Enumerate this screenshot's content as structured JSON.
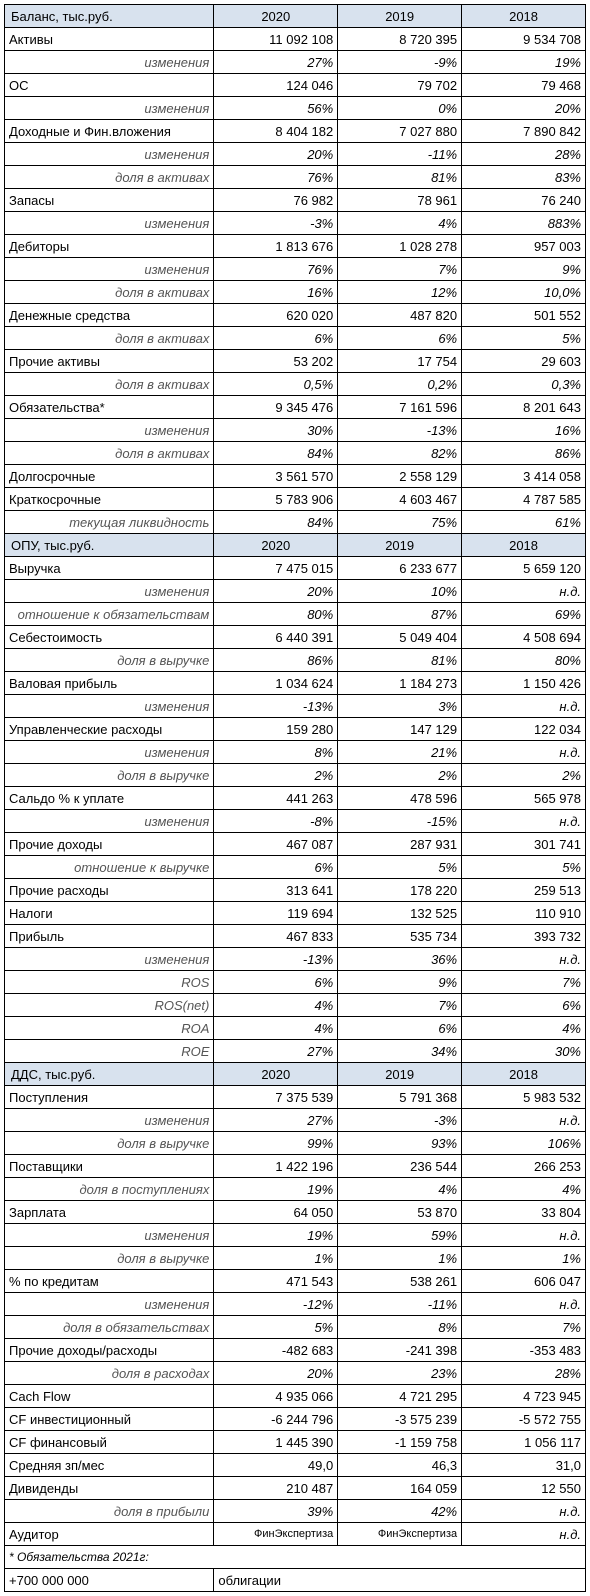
{
  "years": [
    "2020",
    "2019",
    "2018"
  ],
  "sections": {
    "balance": {
      "title": "Баланс, тыс.руб."
    },
    "opu": {
      "title": "ОПУ, тыс.руб."
    },
    "dds": {
      "title": "ДДС, тыс.руб."
    }
  },
  "labels": {
    "izmen": "изменения",
    "dolya_aktiv": "доля в активах",
    "dolya_vyruchke": "доля в выручке",
    "dolya_postup": "доля в поступлениях",
    "dolya_obyaz": "доля в обязательствах",
    "dolya_rashod": "доля в расходах",
    "dolya_pribyl": "доля в прибыли",
    "tek_likv": "текущая ликвидность",
    "otn_obyaz": "отношение к обязательствам",
    "otn_vyruchke": "отношение к выручке",
    "ros": "ROS",
    "rosnet": "ROS(net)",
    "roa": "ROA",
    "roe": "ROE"
  },
  "rows": {
    "aktivy": {
      "l": "Активы",
      "v": [
        "11 092 108",
        "8 720 395",
        "9 534 708"
      ]
    },
    "aktivy_i": {
      "v": [
        "27%",
        "-9%",
        "19%"
      ]
    },
    "os": {
      "l": "ОС",
      "v": [
        "124 046",
        "79 702",
        "79 468"
      ]
    },
    "os_i": {
      "v": [
        "56%",
        "0%",
        "20%"
      ]
    },
    "dohod": {
      "l": "Доходные и Фин.вложения",
      "v": [
        "8 404 182",
        "7 027 880",
        "7 890 842"
      ]
    },
    "dohod_i": {
      "v": [
        "20%",
        "-11%",
        "28%"
      ]
    },
    "dohod_d": {
      "v": [
        "76%",
        "81%",
        "83%"
      ]
    },
    "zapasy": {
      "l": "Запасы",
      "v": [
        "76 982",
        "78 961",
        "76 240"
      ]
    },
    "zapasy_i": {
      "v": [
        "-3%",
        "4%",
        "883%"
      ]
    },
    "debit": {
      "l": "Дебиторы",
      "v": [
        "1 813 676",
        "1 028 278",
        "957 003"
      ]
    },
    "debit_i": {
      "v": [
        "76%",
        "7%",
        "9%"
      ]
    },
    "debit_d": {
      "v": [
        "16%",
        "12%",
        "10,0%"
      ]
    },
    "den": {
      "l": "Денежные средства",
      "v": [
        "620 020",
        "487 820",
        "501 552"
      ]
    },
    "den_d": {
      "v": [
        "6%",
        "6%",
        "5%"
      ]
    },
    "prakt": {
      "l": "Прочие активы",
      "v": [
        "53 202",
        "17 754",
        "29 603"
      ]
    },
    "prakt_d": {
      "v": [
        "0,5%",
        "0,2%",
        "0,3%"
      ]
    },
    "obyaz": {
      "l": "Обязательства*",
      "v": [
        "9 345 476",
        "7 161 596",
        "8 201 643"
      ]
    },
    "obyaz_i": {
      "v": [
        "30%",
        "-13%",
        "16%"
      ]
    },
    "obyaz_d": {
      "v": [
        "84%",
        "82%",
        "86%"
      ]
    },
    "dolgo": {
      "l": "Долгосрочные",
      "v": [
        "3 561 570",
        "2 558 129",
        "3 414 058"
      ]
    },
    "kratko": {
      "l": "Краткосрочные",
      "v": [
        "5 783 906",
        "4 603 467",
        "4 787 585"
      ]
    },
    "tek": {
      "v": [
        "84%",
        "75%",
        "61%"
      ]
    },
    "vyruchka": {
      "l": "Выручка",
      "v": [
        "7 475 015",
        "6 233 677",
        "5 659 120"
      ]
    },
    "vyruchka_i": {
      "v": [
        "20%",
        "10%",
        "н.д."
      ]
    },
    "vyruchka_o": {
      "v": [
        "80%",
        "87%",
        "69%"
      ]
    },
    "sebest": {
      "l": "Себестоимость",
      "v": [
        "6 440 391",
        "5 049 404",
        "4 508 694"
      ]
    },
    "sebest_d": {
      "v": [
        "86%",
        "81%",
        "80%"
      ]
    },
    "valprib": {
      "l": "Валовая прибыль",
      "v": [
        "1 034 624",
        "1 184 273",
        "1 150 426"
      ]
    },
    "valprib_i": {
      "v": [
        "-13%",
        "3%",
        "н.д."
      ]
    },
    "uprr": {
      "l": "Управленческие расходы",
      "v": [
        "159 280",
        "147 129",
        "122 034"
      ]
    },
    "uprr_i": {
      "v": [
        "8%",
        "21%",
        "н.д."
      ]
    },
    "uprr_d": {
      "v": [
        "2%",
        "2%",
        "2%"
      ]
    },
    "saldo": {
      "l": "Сальдо % к уплате",
      "v": [
        "441 263",
        "478 596",
        "565 978"
      ]
    },
    "saldo_i": {
      "v": [
        "-8%",
        "-15%",
        "н.д."
      ]
    },
    "prdoh": {
      "l": "Прочие доходы",
      "v": [
        "467 087",
        "287 931",
        "301 741"
      ]
    },
    "prdoh_o": {
      "v": [
        "6%",
        "5%",
        "5%"
      ]
    },
    "prrash": {
      "l": "Прочие расходы",
      "v": [
        "313 641",
        "178 220",
        "259 513"
      ]
    },
    "nalogi": {
      "l": "Налоги",
      "v": [
        "119 694",
        "132 525",
        "110 910"
      ]
    },
    "pribyl": {
      "l": "Прибыль",
      "v": [
        "467 833",
        "535 734",
        "393 732"
      ]
    },
    "pribyl_i": {
      "v": [
        "-13%",
        "36%",
        "н.д."
      ]
    },
    "ros": {
      "v": [
        "6%",
        "9%",
        "7%"
      ]
    },
    "rosnet": {
      "v": [
        "4%",
        "7%",
        "6%"
      ]
    },
    "roa": {
      "v": [
        "4%",
        "6%",
        "4%"
      ]
    },
    "roe": {
      "v": [
        "27%",
        "34%",
        "30%"
      ]
    },
    "postup": {
      "l": "Поступления",
      "v": [
        "7 375 539",
        "5 791 368",
        "5 983 532"
      ]
    },
    "postup_i": {
      "v": [
        "27%",
        "-3%",
        "н.д."
      ]
    },
    "postup_d": {
      "v": [
        "99%",
        "93%",
        "106%"
      ]
    },
    "postav": {
      "l": "Поставщики",
      "v": [
        "1 422 196",
        "236 544",
        "266 253"
      ]
    },
    "postav_d": {
      "v": [
        "19%",
        "4%",
        "4%"
      ]
    },
    "zarpl": {
      "l": "Зарплата",
      "v": [
        "64 050",
        "53 870",
        "33 804"
      ]
    },
    "zarpl_i": {
      "v": [
        "19%",
        "59%",
        "н.д."
      ]
    },
    "zarpl_d": {
      "v": [
        "1%",
        "1%",
        "1%"
      ]
    },
    "pkred": {
      "l": "% по кредитам",
      "v": [
        "471 543",
        "538 261",
        "606 047"
      ]
    },
    "pkred_i": {
      "v": [
        "-12%",
        "-11%",
        "н.д."
      ]
    },
    "pkred_d": {
      "v": [
        "5%",
        "8%",
        "7%"
      ]
    },
    "prdr": {
      "l": "Прочие доходы/расходы",
      "v": [
        "-482 683",
        "-241 398",
        "-353 483"
      ]
    },
    "prdr_d": {
      "v": [
        "20%",
        "23%",
        "28%"
      ]
    },
    "cf": {
      "l": "Cach Flow",
      "v": [
        "4 935 066",
        "4 721 295",
        "4 723 945"
      ]
    },
    "cfi": {
      "l": "CF инвестиционный",
      "v": [
        "-6 244 796",
        "-3 575 239",
        "-5 572 755"
      ]
    },
    "cff": {
      "l": "CF финансовый",
      "v": [
        "1 445 390",
        "-1 159 758",
        "1 056 117"
      ]
    },
    "srzp": {
      "l": "Средняя зп/мес",
      "v": [
        "49,0",
        "46,3",
        "31,0"
      ]
    },
    "div": {
      "l": "Дивиденды",
      "v": [
        "210 487",
        "164 059",
        "12 550"
      ]
    },
    "div_d": {
      "v": [
        "39%",
        "42%",
        "н.д."
      ]
    },
    "audit": {
      "l": "Аудитор",
      "v": [
        "ФинЭкспертиза",
        "ФинЭкспертиза",
        "н.д."
      ]
    }
  },
  "footnote": {
    "title": "* Обязательства 2021г:",
    "amount": "+700 000 000",
    "desc": "облигации"
  }
}
